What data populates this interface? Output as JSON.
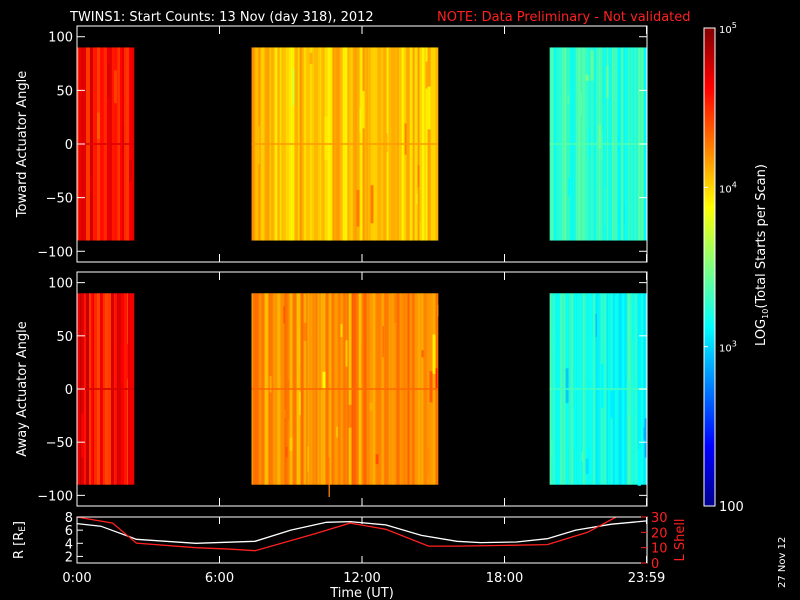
{
  "title": {
    "text": "TWINS1: Start Counts: 13 Nov (day 318), 2012",
    "note": "NOTE: Data Preliminary - Not validated",
    "note_color": "#ff2020"
  },
  "date_stamp": "27 Nov 12",
  "chart_data": [
    {
      "type": "heatmap",
      "ylabel": "Toward Actuator Angle",
      "ylim": [
        -110,
        110
      ],
      "y_ticks": [
        "100",
        "50",
        "0",
        "−50",
        "−100"
      ],
      "y_tick_values": [
        100,
        50,
        0,
        -50,
        -100
      ],
      "x_range_hours": [
        0,
        24
      ],
      "angle_range": [
        -90,
        90
      ],
      "segments": [
        {
          "start": 0.0,
          "end": 2.4,
          "log_counts": 4.6
        },
        {
          "start": 7.35,
          "end": 15.2,
          "log_counts": 4.05
        },
        {
          "start": 19.9,
          "end": 24.0,
          "log_counts": 3.25
        }
      ]
    },
    {
      "type": "heatmap",
      "ylabel": "Away Actuator Angle",
      "ylim": [
        -110,
        110
      ],
      "y_ticks": [
        "100",
        "50",
        "0",
        "−50",
        "−100"
      ],
      "y_tick_values": [
        100,
        50,
        0,
        -50,
        -100
      ],
      "x_range_hours": [
        0,
        24
      ],
      "angle_range": [
        -90,
        90
      ],
      "segments": [
        {
          "start": 0.0,
          "end": 2.4,
          "log_counts": 4.62
        },
        {
          "start": 7.35,
          "end": 15.2,
          "log_counts": 4.2
        },
        {
          "start": 19.9,
          "end": 24.0,
          "log_counts": 3.2
        }
      ]
    },
    {
      "type": "line",
      "ylabel": "R [RE]",
      "ylim": [
        1,
        8
      ],
      "y_ticks": [
        "8",
        "6",
        "4",
        "2"
      ],
      "y2label": "L Shell",
      "y2lim": [
        0,
        30
      ],
      "y2_ticks": [
        "30",
        "20",
        "10",
        "0"
      ],
      "y2_color": "#ff2020",
      "xlabel": "Time (UT)",
      "x_ticks": [
        "0:00",
        "6:00",
        "12:00",
        "18:00",
        "23:59"
      ],
      "x_tick_values": [
        0,
        6,
        12,
        18,
        23.98
      ],
      "series": [
        {
          "name": "R",
          "color": "#ffffff",
          "axis": "left",
          "x": [
            0,
            1,
            2.5,
            5,
            7.5,
            9,
            10.5,
            11.5,
            13,
            14.5,
            16,
            17,
            18.5,
            19.8,
            21,
            22.5,
            24
          ],
          "y": [
            7.0,
            6.6,
            4.6,
            4.0,
            4.3,
            6.0,
            7.2,
            7.3,
            6.8,
            5.2,
            4.3,
            4.1,
            4.2,
            4.7,
            6.0,
            6.9,
            7.4
          ]
        },
        {
          "name": "L Shell",
          "color": "#ff2020",
          "axis": "right",
          "x": [
            0,
            1.5,
            2.5,
            5,
            6.5,
            7.5,
            10,
            11.5,
            13,
            14.8,
            16,
            18,
            19.8,
            21.5,
            22.7
          ],
          "y": [
            32,
            26,
            13,
            10,
            9,
            8,
            19,
            26,
            22,
            11,
            11,
            11.5,
            12,
            20,
            32
          ]
        }
      ]
    }
  ],
  "colorbar": {
    "label": "LOG10(Total Starts per Scan)",
    "label_main": "LOG",
    "label_sub": "10",
    "label_rest": "(Total Starts per Scan)",
    "range_log": [
      2,
      5
    ],
    "ticks": [
      {
        "base": "10",
        "exp": "5",
        "value": 5
      },
      {
        "base": "10",
        "exp": "4",
        "value": 4
      },
      {
        "base": "10",
        "exp": "3",
        "value": 3
      }
    ],
    "bottom_tick": {
      "text": "100",
      "value": 2
    }
  }
}
